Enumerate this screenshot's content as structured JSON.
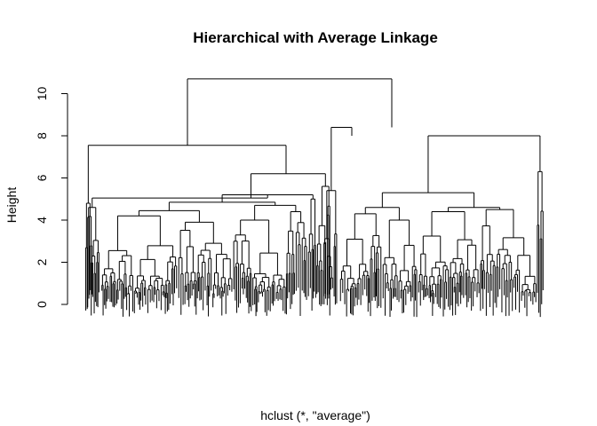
{
  "chart_data": {
    "type": "dendrogram",
    "title": "Hierarchical with Average Linkage",
    "xlabel": "hclust (*, \"average\")",
    "ylabel": "Height",
    "yticks": [
      0,
      2,
      4,
      6,
      8,
      10
    ],
    "ylim": [
      0,
      10.7
    ],
    "grid": false,
    "legend": "none",
    "top_merge_heights": [
      10.7,
      8.4,
      8.0,
      7.55,
      6.2
    ],
    "approx_leaf_height_range": [
      -0.6,
      0.8
    ],
    "line_color": "#000000"
  }
}
